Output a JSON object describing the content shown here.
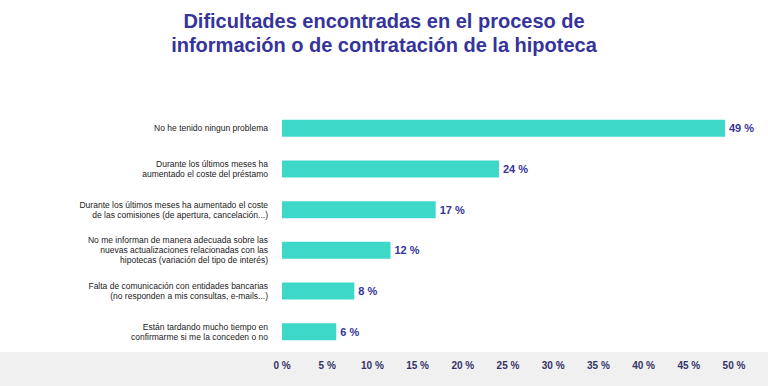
{
  "chart_data": {
    "type": "bar",
    "orientation": "horizontal",
    "title": "Dificultades encontradas en el proceso de\ninformación o de contratación de la hipoteca",
    "categories": [
      "No he tenido ningun problema",
      "Durante los últimos meses ha\naumentado el coste del préstamo",
      "Durante los últimos meses ha aumentado el coste\nde las comisiones (de apertura, cancelación...)",
      "No me informan de manera adecuada sobre las\nnuevas actualizaciones relacionadas con las\nhipotecas (variación del tipo de interés)",
      "Falta de comunicación con entidades bancarias\n(no responden a mis consultas, e-mails...)",
      "Están tardando mucho tiempo en\nconfirmarme si me la conceden o no"
    ],
    "values": [
      49,
      24,
      17,
      12,
      8,
      6
    ],
    "value_labels": [
      "49 %",
      "24 %",
      "17 %",
      "12 %",
      "8 %",
      "6 %"
    ],
    "color": "#3dd8c8",
    "data_labels": true,
    "grid": false,
    "xlim": [
      0,
      50
    ],
    "xticks": [
      {
        "value": 0,
        "label": "0 %"
      },
      {
        "value": 5,
        "label": "5 %"
      },
      {
        "value": 10,
        "label": "10 %"
      },
      {
        "value": 15,
        "label": "15 %"
      },
      {
        "value": 20,
        "label": "20 %"
      },
      {
        "value": 25,
        "label": "25 %"
      },
      {
        "value": 30,
        "label": "30 %"
      },
      {
        "value": 35,
        "label": "35 %"
      },
      {
        "value": 40,
        "label": "40 %"
      },
      {
        "value": 45,
        "label": "45 %"
      },
      {
        "value": 50,
        "label": "50 %"
      }
    ]
  }
}
